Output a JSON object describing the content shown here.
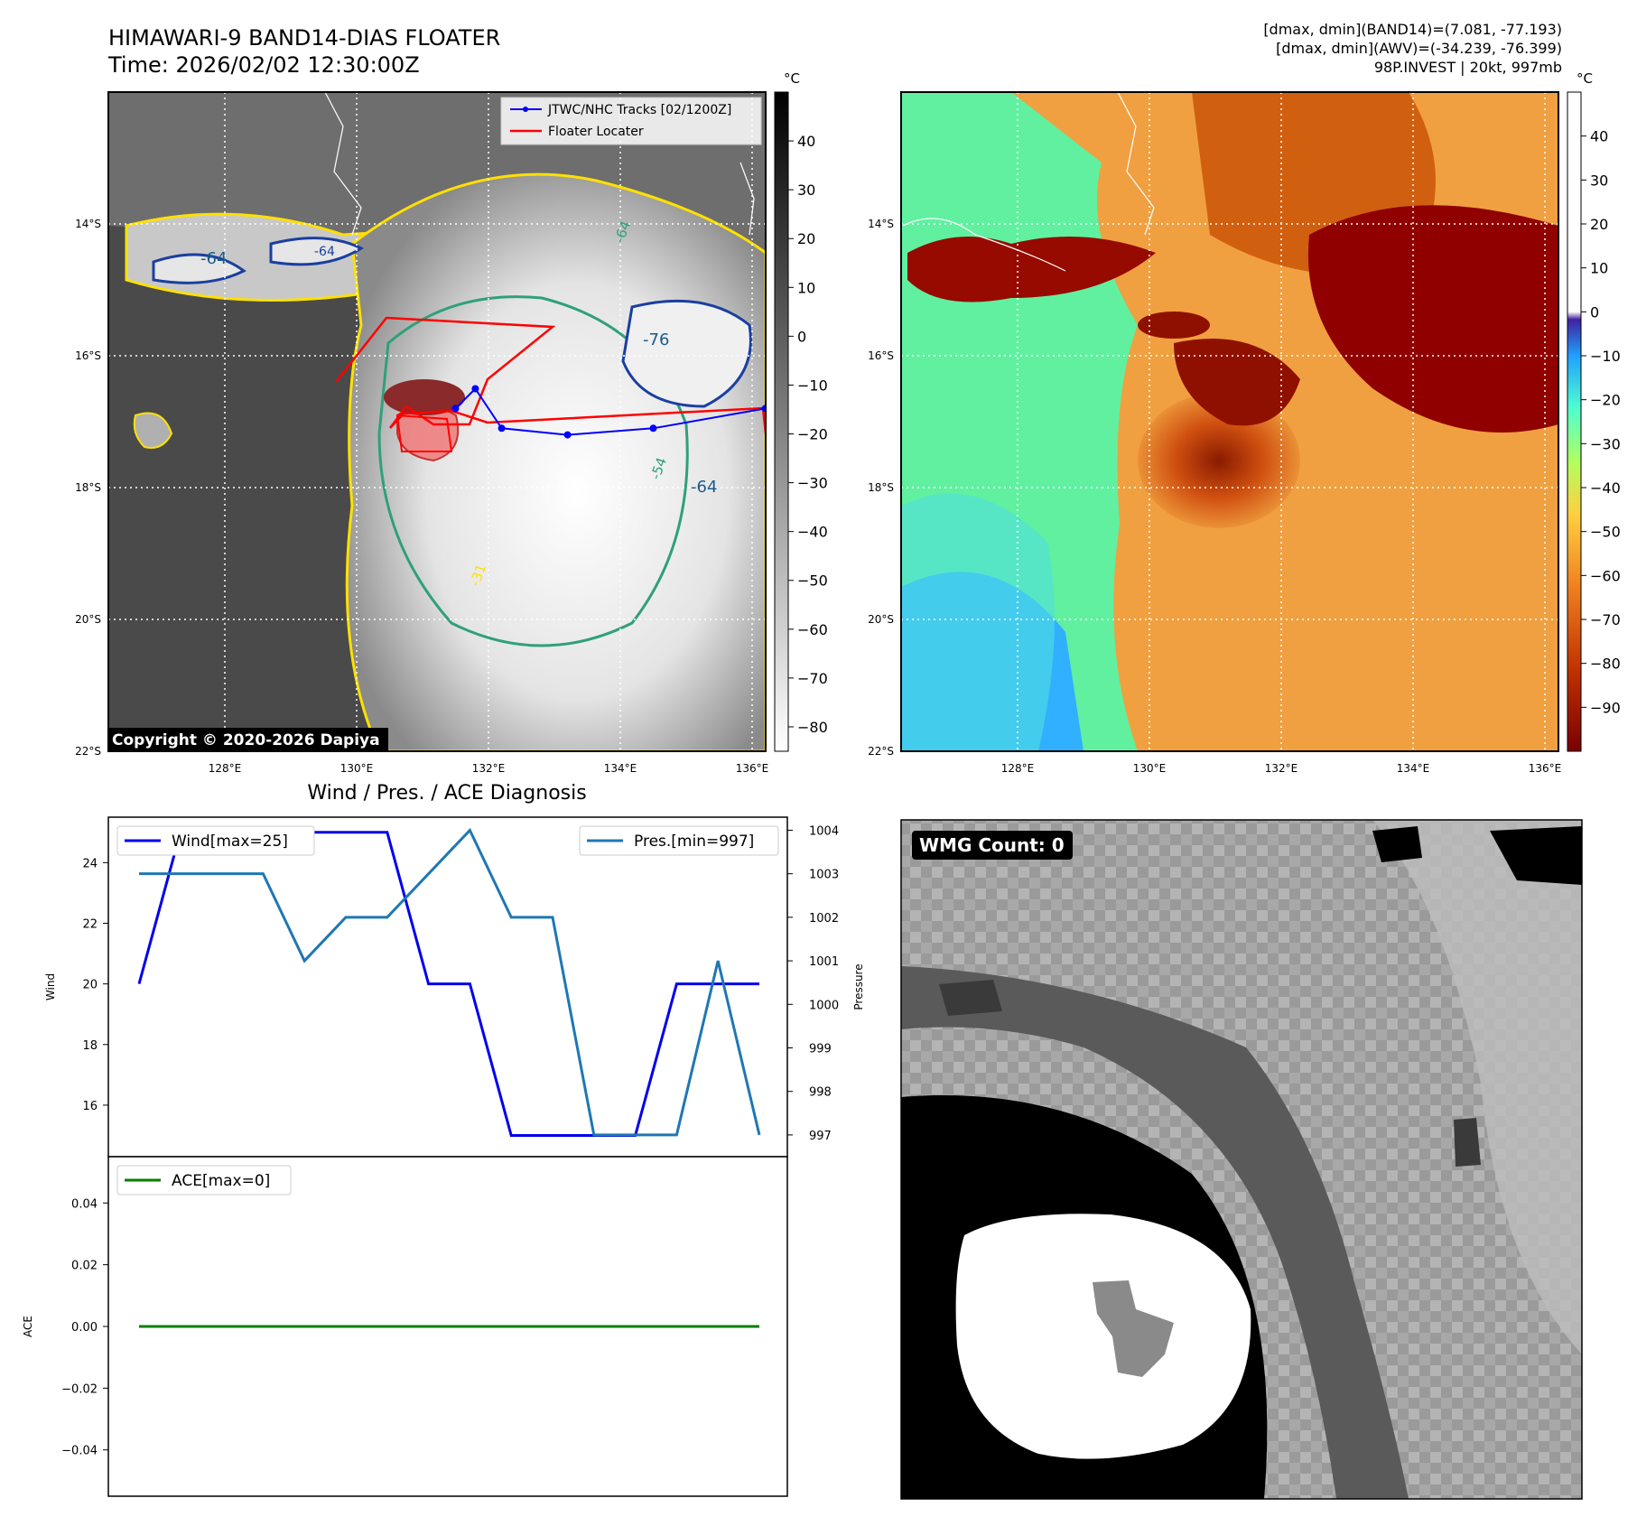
{
  "header": {
    "title_line1": "HIMAWARI-9 BAND14-DIAS FLOATER",
    "title_line2": "Time: 2026/02/02 12:30:00Z",
    "info_line1": "[dmax, dmin](BAND14)=(7.081, -77.193)",
    "info_line2": "[dmax, dmin](AWV)=(-34.239, -76.399)",
    "info_line3": "98P.INVEST | 20kt, 997mb"
  },
  "maps": {
    "lat_labels": [
      "14°S",
      "16°S",
      "18°S",
      "20°S",
      "22°S"
    ],
    "lon_labels": [
      "128°E",
      "130°E",
      "132°E",
      "134°E",
      "136°E"
    ],
    "copyright": "Copyright © 2020-2026 Dapiya",
    "legend_track": "JTWC/NHC Tracks [02/1200Z]",
    "legend_floater": "Floater Locater",
    "contour_labels": [
      "-64",
      "-64",
      "-76",
      "-64",
      "-64",
      "-54",
      "-31"
    ],
    "colorbar_unit": "°C",
    "ir_colorbar": {
      "ticks": [
        "40",
        "30",
        "20",
        "10",
        "0",
        "−10",
        "−20",
        "−30",
        "−40",
        "−50",
        "−60",
        "−70",
        "−80"
      ],
      "range": [
        -85,
        50
      ]
    },
    "wv_colorbar": {
      "ticks": [
        "40",
        "30",
        "20",
        "10",
        "0",
        "−10",
        "−20",
        "−30",
        "−40",
        "−50",
        "−60",
        "−70",
        "−80",
        "−90"
      ],
      "range": [
        -100,
        50
      ]
    },
    "track_points": [
      [
        131.5,
        -16.8
      ],
      [
        131.8,
        -16.5
      ],
      [
        132.2,
        -17.1
      ],
      [
        133.2,
        -17.2
      ],
      [
        134.5,
        -17.1
      ],
      [
        136.2,
        -16.8
      ]
    ],
    "colors": {
      "track": "#0000ff",
      "floater": "#ff0000"
    }
  },
  "diagnosis_title": "Wind / Pres. / ACE Diagnosis",
  "chart_data": [
    {
      "type": "line",
      "x": [
        0,
        1,
        2,
        3,
        4,
        5,
        6,
        7,
        8,
        9,
        10,
        11,
        12,
        13,
        14,
        15
      ],
      "series": [
        {
          "name": "Wind[max=25]",
          "axis": "left",
          "color": "#0000ee",
          "values": [
            20,
            25,
            25,
            25,
            25,
            25,
            25,
            20,
            20,
            15,
            15,
            15,
            15,
            20,
            20,
            20
          ]
        },
        {
          "name": "Pres.[min=997]",
          "axis": "right",
          "color": "#1f77b4",
          "values": [
            1003,
            1003,
            1003,
            1003,
            1001,
            1002,
            1002,
            1003,
            1004,
            1002,
            1002,
            997,
            997,
            997,
            1001,
            997
          ]
        }
      ],
      "ylabel": "Wind",
      "y2label": "Pressure",
      "ylim": [
        14.3,
        25.5
      ],
      "y2lim": [
        996.5,
        1004.3
      ],
      "yticks": [
        "24",
        "22",
        "20",
        "18",
        "16"
      ],
      "y2ticks": [
        "1004",
        "1003",
        "1002",
        "1001",
        "1000",
        "999",
        "998",
        "997"
      ]
    },
    {
      "type": "line",
      "x": [
        0,
        1,
        2,
        3,
        4,
        5,
        6,
        7,
        8,
        9,
        10,
        11,
        12,
        13,
        14,
        15
      ],
      "series": [
        {
          "name": "ACE[max=0]",
          "color": "#008000",
          "values": [
            0,
            0,
            0,
            0,
            0,
            0,
            0,
            0,
            0,
            0,
            0,
            0,
            0,
            0,
            0,
            0
          ]
        }
      ],
      "ylabel": "ACE",
      "ylim": [
        -0.055,
        0.055
      ],
      "yticks": [
        "0.04",
        "0.02",
        "0.00",
        "−0.02",
        "−0.04"
      ]
    }
  ],
  "wmg": {
    "count_label": "WMG Count: 0"
  }
}
